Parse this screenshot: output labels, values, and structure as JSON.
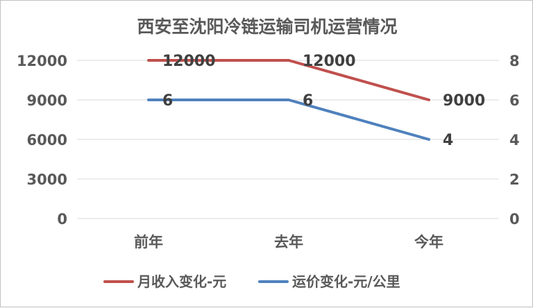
{
  "chart_data": {
    "type": "line",
    "title": "西安至沈阳冷链运输司机运营情况",
    "categories": [
      "前年",
      "去年",
      "今年"
    ],
    "series": [
      {
        "name": "月收入变化-元",
        "values": [
          12000,
          12000,
          9000
        ],
        "axis": "left",
        "color": "#c0504d"
      },
      {
        "name": "运价变化-元/公里",
        "values": [
          6,
          6,
          4
        ],
        "axis": "right",
        "color": "#4f81bd"
      }
    ],
    "y_left": {
      "ticks": [
        "0",
        "3000",
        "6000",
        "9000",
        "12000"
      ],
      "ylim": [
        0,
        12000
      ]
    },
    "y_right": {
      "ticks": [
        "0",
        "2",
        "4",
        "6",
        "8"
      ],
      "ylim": [
        0,
        8
      ]
    },
    "grid": true,
    "legend_position": "bottom"
  }
}
